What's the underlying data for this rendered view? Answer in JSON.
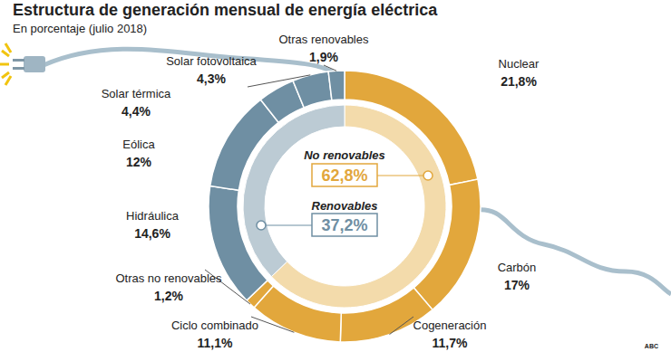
{
  "chart_data": [
    {
      "type": "donut",
      "title": "Estructura de generación mensual de energía eléctrica",
      "subtitle": "En porcentaje (julio 2018)",
      "source": "ABC",
      "categories": [
        "Nuclear",
        "Carbón",
        "Cogeneración",
        "Ciclo combinado",
        "Otras no renovables",
        "Hidráulica",
        "Eólica",
        "Solar térmica",
        "Solar fotovoltaica",
        "Otras renovables"
      ],
      "values": [
        21.8,
        17,
        11.7,
        11.1,
        1.2,
        14.6,
        12,
        4.4,
        4.3,
        1.9
      ],
      "value_labels": [
        "21,8%",
        "17%",
        "11,7%",
        "11,1%",
        "1,2%",
        "14,6%",
        "12%",
        "4,4%",
        "4,3%",
        "1,9%"
      ],
      "colors": [
        "#e2a73c",
        "#e2a73c",
        "#e2a73c",
        "#e2a73c",
        "#e2a73c",
        "#6f8fa3",
        "#6f8fa3",
        "#6f8fa3",
        "#6f8fa3",
        "#6f8fa3"
      ],
      "data_labels": true
    },
    {
      "type": "donut",
      "categories": [
        "No renovables",
        "Renovables"
      ],
      "values": [
        62.8,
        37.2
      ],
      "value_labels": [
        "62,8%",
        "37,2%"
      ],
      "colors": [
        "#f3dbab",
        "#bccbd4"
      ],
      "data_labels": true
    }
  ]
}
